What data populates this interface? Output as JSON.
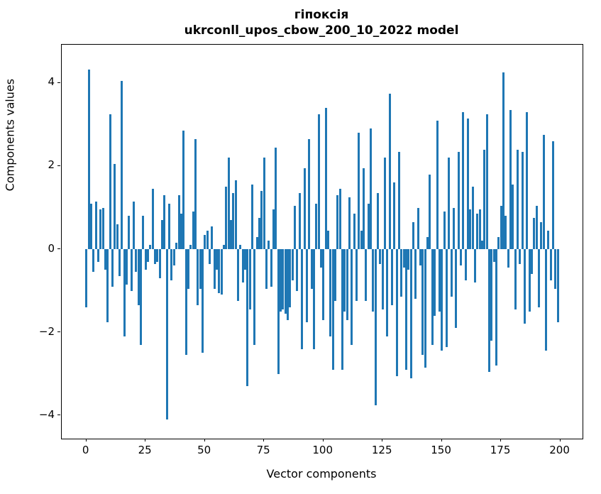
{
  "figure": {
    "title_line1": "гіпоксія",
    "title_line2": "ukrconll_upos_cbow_200_10_2022 model",
    "xlabel": "Vector components",
    "ylabel": "Components values"
  },
  "chart_data": {
    "type": "bar",
    "title": "гіпоксія",
    "subtitle": "ukrconll_upos_cbow_200_10_2022 model",
    "xlabel": "Vector components",
    "ylabel": "Components values",
    "bar_color": "#1f77b4",
    "grid": false,
    "legend": null,
    "x_is_index": true,
    "n_points": 200,
    "xlim": [
      -10.4,
      209.4
    ],
    "ylim": [
      -4.56,
      4.92
    ],
    "xticks": [
      0,
      25,
      50,
      75,
      100,
      125,
      150,
      175,
      200
    ],
    "yticks": [
      -4,
      -2,
      0,
      2,
      4
    ],
    "values": [
      -1.4,
      4.33,
      1.1,
      -0.55,
      1.15,
      -0.3,
      0.95,
      1.0,
      -0.5,
      -1.75,
      3.25,
      -0.9,
      2.05,
      0.6,
      -0.65,
      4.05,
      -2.1,
      -0.85,
      0.8,
      -1.0,
      1.15,
      -0.55,
      -1.35,
      -2.3,
      0.8,
      -0.5,
      -0.3,
      0.1,
      1.45,
      -0.35,
      -0.3,
      -0.7,
      0.7,
      1.3,
      -4.1,
      1.1,
      -0.75,
      -0.4,
      0.15,
      1.3,
      0.85,
      2.85,
      -2.55,
      -0.95,
      0.1,
      0.9,
      2.65,
      -1.35,
      -0.95,
      -2.5,
      0.35,
      0.45,
      -0.35,
      0.55,
      -0.95,
      -0.5,
      -1.05,
      -1.1,
      0.1,
      1.5,
      2.2,
      0.7,
      1.35,
      1.65,
      -1.25,
      0.1,
      -0.8,
      -0.5,
      -3.3,
      -1.45,
      1.55,
      -2.3,
      0.3,
      0.75,
      1.4,
      2.2,
      -0.95,
      0.2,
      -0.9,
      0.95,
      2.45,
      -3.0,
      -1.5,
      -1.45,
      -1.55,
      -1.7,
      -1.4,
      -0.75,
      1.05,
      -1.0,
      1.35,
      -2.4,
      1.95,
      -1.75,
      2.65,
      -0.95,
      -2.4,
      1.1,
      3.25,
      -0.45,
      -1.7,
      3.4,
      0.45,
      -2.1,
      -2.9,
      -1.25,
      1.3,
      1.45,
      -2.9,
      -1.5,
      -1.7,
      1.25,
      -2.3,
      0.85,
      -1.25,
      2.8,
      0.45,
      1.95,
      -1.25,
      1.1,
      2.9,
      -1.5,
      -3.75,
      1.35,
      -0.35,
      -1.45,
      2.2,
      -2.1,
      3.75,
      -1.35,
      1.6,
      -3.05,
      2.35,
      -1.15,
      -0.45,
      -2.9,
      -0.5,
      -3.1,
      0.65,
      -1.2,
      1.0,
      -0.4,
      -2.55,
      -2.85,
      0.3,
      1.8,
      -2.3,
      -1.6,
      3.1,
      -1.5,
      -2.45,
      0.9,
      -2.35,
      2.2,
      -1.15,
      1.0,
      -1.9,
      2.35,
      -0.4,
      3.3,
      -0.75,
      3.15,
      0.95,
      1.5,
      -0.8,
      0.85,
      0.95,
      0.2,
      2.4,
      3.25,
      -2.95,
      -2.2,
      -0.3,
      -2.8,
      0.3,
      1.05,
      4.25,
      0.8,
      -0.45,
      3.35,
      1.55,
      -1.45,
      2.4,
      -0.35,
      2.35,
      -1.8,
      3.3,
      -1.5,
      -0.6,
      0.75,
      1.05,
      -1.4,
      0.65,
      2.75,
      -2.45,
      0.45,
      -0.75,
      2.6,
      -0.95,
      -1.75
    ]
  }
}
